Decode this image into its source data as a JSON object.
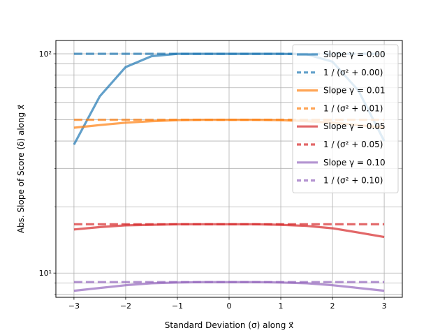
{
  "chart_data": {
    "type": "line",
    "xlabel": "Standard Deviation (σ) along x⃗",
    "ylabel": "Abs. Slope of Score (δ) along x⃗",
    "xlim": [
      -3.35,
      3.35
    ],
    "ylim": [
      7.75,
      115
    ],
    "yscale": "log",
    "grid": true,
    "legend_position": "top-right",
    "xticks": [
      -3,
      -2,
      -1,
      0,
      1,
      2,
      3
    ],
    "xtick_labels": [
      "−3",
      "−2",
      "−1",
      "0",
      "1",
      "2",
      "3"
    ],
    "yticks_major": [
      10,
      100
    ],
    "ytick_labels": [
      "10¹",
      "10²"
    ],
    "yticks_minor": [
      8,
      9,
      20,
      30,
      40,
      50,
      60,
      70,
      80,
      90
    ],
    "x": [
      -3.0,
      -2.5,
      -2.0,
      -1.5,
      -1.0,
      -0.5,
      0.0,
      0.5,
      1.0,
      1.5,
      2.0,
      2.5,
      3.0
    ],
    "series": [
      {
        "name": "Slope γ = 0.00",
        "color": "#1f77b4",
        "style": "solid",
        "values": [
          38.5,
          64,
          87,
          97.5,
          100,
          100,
          100,
          100,
          100,
          99.5,
          92,
          68,
          40
        ]
      },
      {
        "name": "1 / (σ² + 0.00)",
        "color": "#1f77b4",
        "style": "dashed",
        "values": [
          100,
          100,
          100,
          100,
          100,
          100,
          100,
          100,
          100,
          100,
          100,
          100,
          100
        ]
      },
      {
        "name": "Slope γ = 0.01",
        "color": "#ff7f0e",
        "style": "solid",
        "values": [
          46,
          47.3,
          48.5,
          49.3,
          49.8,
          50,
          50,
          50,
          49.8,
          49.3,
          48.5,
          47.3,
          46
        ]
      },
      {
        "name": "1 / (σ² + 0.01)",
        "color": "#ff7f0e",
        "style": "dashed",
        "values": [
          50,
          50,
          50,
          50,
          50,
          50,
          50,
          50,
          50,
          50,
          50,
          50,
          50
        ]
      },
      {
        "name": "Slope γ = 0.05",
        "color": "#d62728",
        "style": "solid",
        "values": [
          15.8,
          16.2,
          16.5,
          16.6,
          16.7,
          16.7,
          16.7,
          16.7,
          16.6,
          16.4,
          16.0,
          15.3,
          14.6
        ]
      },
      {
        "name": "1 / (σ² + 0.05)",
        "color": "#d62728",
        "style": "dashed",
        "values": [
          16.7,
          16.7,
          16.7,
          16.7,
          16.7,
          16.7,
          16.7,
          16.7,
          16.7,
          16.7,
          16.7,
          16.7,
          16.7
        ]
      },
      {
        "name": "Slope γ = 0.10",
        "color": "#9467bd",
        "style": "solid",
        "values": [
          8.3,
          8.55,
          8.8,
          8.98,
          9.05,
          9.09,
          9.09,
          9.09,
          9.05,
          8.98,
          8.8,
          8.55,
          8.3
        ]
      },
      {
        "name": "1 / (σ² + 0.10)",
        "color": "#9467bd",
        "style": "dashed",
        "values": [
          9.09,
          9.09,
          9.09,
          9.09,
          9.09,
          9.09,
          9.09,
          9.09,
          9.09,
          9.09,
          9.09,
          9.09,
          9.09
        ]
      }
    ]
  }
}
